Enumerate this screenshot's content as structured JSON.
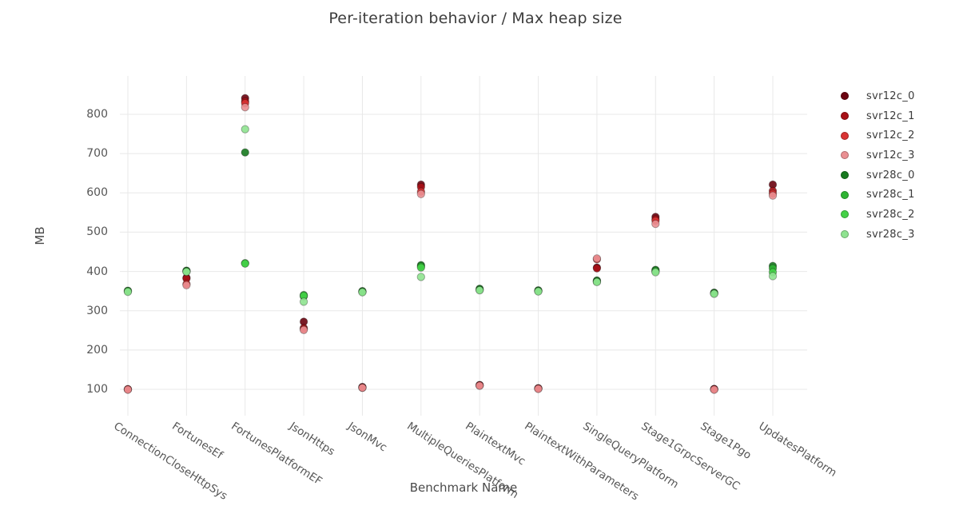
{
  "title": "Per-iteration behavior / Max heap size",
  "chart_data": {
    "type": "scatter",
    "title": "Per-iteration behavior / Max heap size",
    "xlabel": "Benchmark Name",
    "ylabel": "MB",
    "grid": true,
    "legend_position": "right",
    "y_ticks": [
      100,
      200,
      300,
      400,
      500,
      600,
      700,
      800
    ],
    "ylim": [
      30,
      900
    ],
    "categories": [
      "ConnectionCloseHttpSys",
      "FortunesEf",
      "FortunesPlatformEF",
      "JsonHttps",
      "JsonMvc",
      "MultipleQueriesPlatform",
      "PlaintextMvc",
      "PlaintextWithParameters",
      "SingleQueryPlatform",
      "Stage1GrpcServerGC",
      "Stage1Pgo",
      "UpdatesPlatform"
    ],
    "series": [
      {
        "name": "svr12c_0",
        "color": "#6b0310",
        "values": [
          100,
          384,
          841,
          272,
          106,
          621,
          111,
          103,
          410,
          539,
          101,
          621
        ]
      },
      {
        "name": "svr12c_1",
        "color": "#a81016",
        "values": [
          100,
          382,
          833,
          256,
          105,
          615,
          110,
          102,
          408,
          533,
          100,
          605
        ]
      },
      {
        "name": "svr12c_2",
        "color": "#d93333",
        "values": [
          100,
          368,
          828,
          253,
          104,
          603,
          110,
          102,
          431,
          529,
          100,
          598
        ]
      },
      {
        "name": "svr12c_3",
        "color": "#ea8f92",
        "values": [
          99,
          365,
          818,
          251,
          104,
          597,
          109,
          101,
          433,
          521,
          99,
          593
        ]
      },
      {
        "name": "svr28c_0",
        "color": "#177a1f",
        "values": [
          351,
          402,
          703,
          337,
          350,
          416,
          356,
          352,
          377,
          404,
          346,
          414
        ]
      },
      {
        "name": "svr28c_1",
        "color": "#2eb433",
        "values": [
          350,
          401,
          421,
          340,
          349,
          413,
          354,
          351,
          375,
          402,
          345,
          408
        ]
      },
      {
        "name": "svr28c_2",
        "color": "#44d147",
        "values": [
          350,
          400,
          420,
          338,
          348,
          410,
          353,
          350,
          374,
          400,
          344,
          398
        ]
      },
      {
        "name": "svr28c_3",
        "color": "#8fe390",
        "values": [
          348,
          399,
          762,
          323,
          347,
          386,
          352,
          349,
          373,
          398,
          343,
          388
        ]
      }
    ],
    "style": {
      "grid_color": "#e8e8e8",
      "title_color": "#3d3d3d",
      "tick_color": "#565656",
      "marker_outline": "rgba(0,0,0,0.3)"
    }
  }
}
